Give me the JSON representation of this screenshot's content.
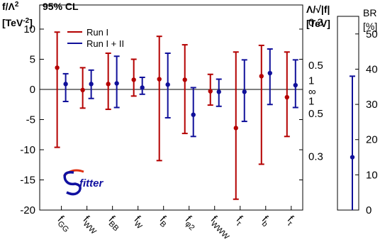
{
  "chart_data": [
    {
      "type": "scatter",
      "title": "95% CL",
      "ylabel_main": "f/Λ",
      "ylabel_sup": "2",
      "ylabel_unit_main": "[TeV",
      "ylabel_unit_sup": "-2",
      "ylabel_unit_close": "]",
      "ylim": [
        -20,
        14
      ],
      "yticks": [
        10,
        5,
        0,
        -5,
        -10,
        -15,
        -20
      ],
      "ytick_labels": [
        "10",
        "5",
        "0",
        "-5",
        "-10",
        "-15",
        "-20"
      ],
      "categories": [
        "GG",
        "WW",
        "BB",
        "W",
        "B",
        "φ2",
        "WWW",
        "τ",
        "b",
        "τ"
      ],
      "category_main": "f",
      "series": [
        {
          "name": "Run I",
          "color": "#b40000",
          "values": [
            3.6,
            -0.1,
            0.9,
            1.6,
            1.7,
            1.6,
            -0.3,
            -6.4,
            2.2,
            -1.3
          ],
          "lower": [
            -9.6,
            -3.1,
            -3.3,
            -1.1,
            -11.8,
            -7.3,
            -2.6,
            -18.2,
            -12.4,
            -7.8
          ],
          "upper": [
            9.5,
            3.6,
            6.0,
            5.0,
            8.8,
            7.4,
            2.5,
            6.2,
            7.3,
            6.2
          ]
        },
        {
          "name": "Run I + II",
          "color": "#10109a",
          "values": [
            0.9,
            0.9,
            1.0,
            0.3,
            0.8,
            -4.2,
            -0.4,
            -0.4,
            2.7,
            0.7
          ],
          "lower": [
            -2.0,
            -1.5,
            -3.0,
            -0.8,
            -4.7,
            -7.8,
            -2.8,
            -5.3,
            -2.5,
            -3.0
          ],
          "upper": [
            2.6,
            3.2,
            5.5,
            2.0,
            6.0,
            0.3,
            1.7,
            4.9,
            6.7,
            4.9
          ]
        }
      ],
      "right_axis": {
        "label_top": "Λ/√|f|",
        "label_unit": "[TeV]",
        "ticks": [
          "0.3",
          "0.5",
          "1",
          "∞",
          "1",
          "0.5",
          "0.3"
        ],
        "tick_values": [
          11.1,
          4.0,
          1.0,
          0,
          -1.0,
          -4.0,
          -11.1
        ]
      },
      "logo_text": "fitter"
    },
    {
      "type": "scatter",
      "ylabel": "BR",
      "ylabel_unit": "[%]",
      "ylim": [
        0,
        55
      ],
      "yticks": [
        0,
        10,
        20,
        30,
        40,
        50
      ],
      "ytick_labels": [
        "0",
        "10",
        "20",
        "30",
        "40",
        "50"
      ],
      "point": {
        "value": 15.0,
        "lower": 0.0,
        "upper": 38.0,
        "color": "#10109a"
      }
    }
  ]
}
